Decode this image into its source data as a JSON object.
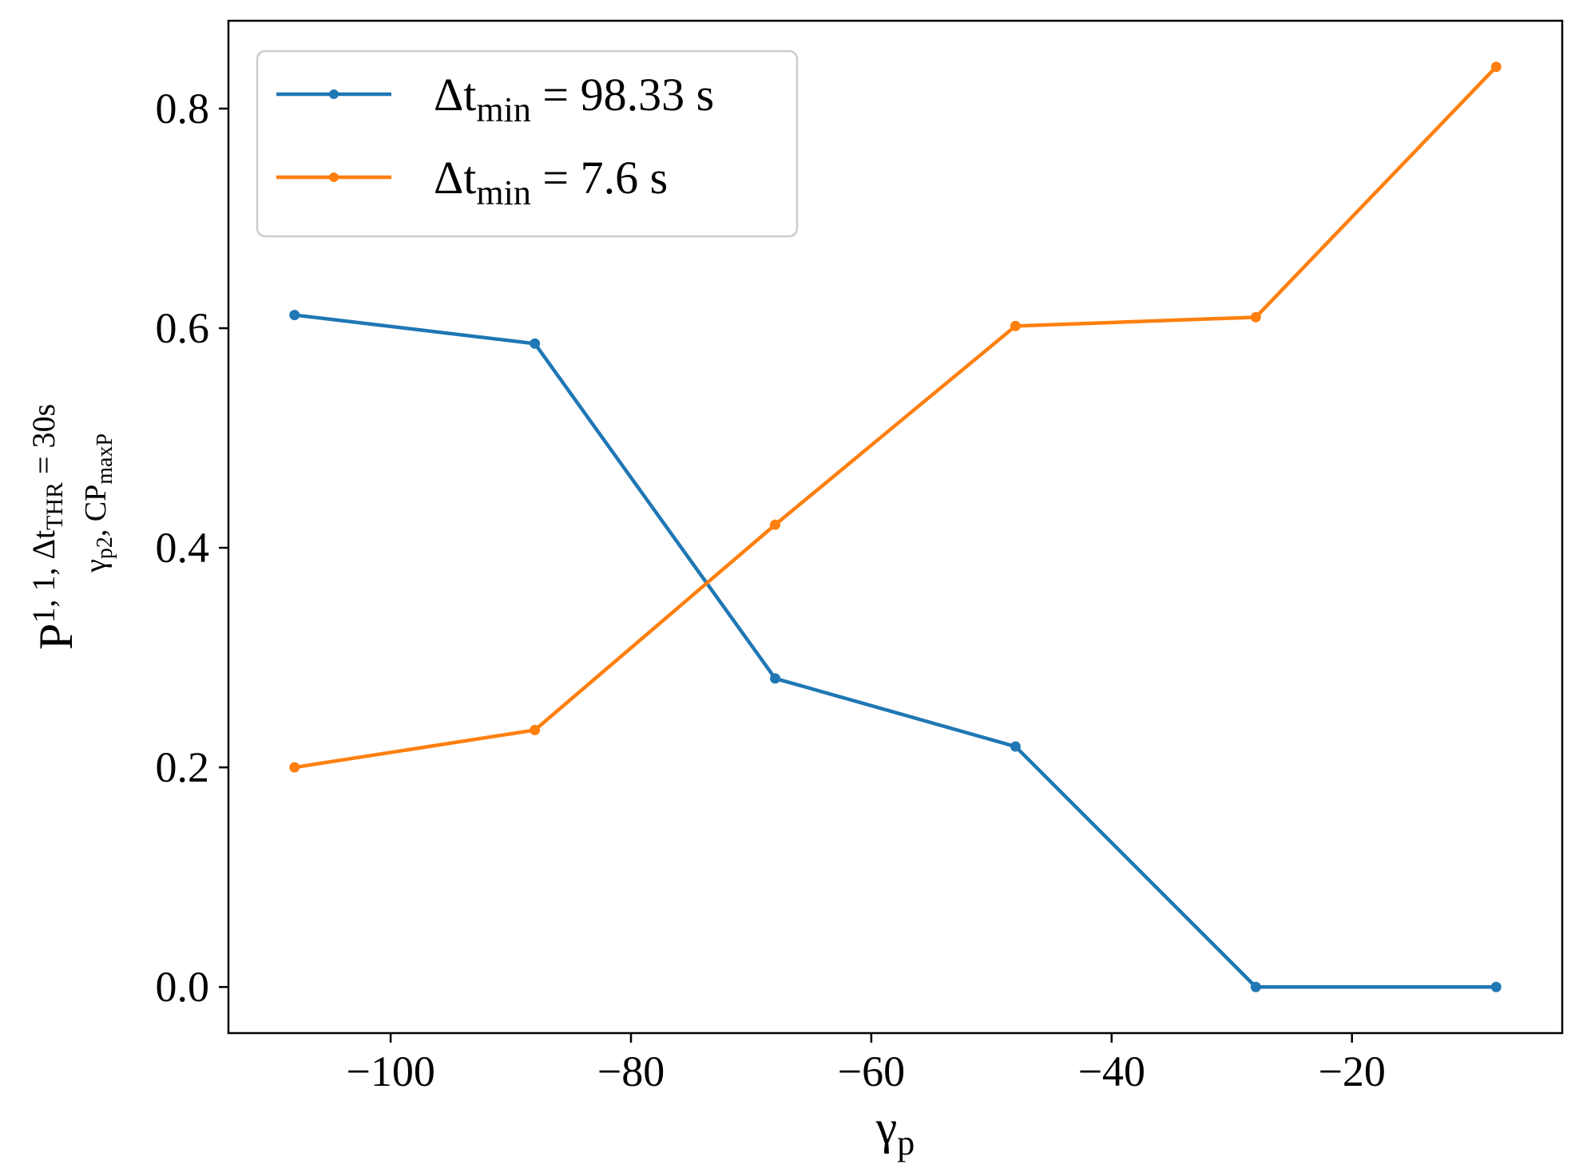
{
  "chart_data": {
    "type": "line",
    "title": "",
    "xlabel": {
      "base": "γ",
      "sub": "p"
    },
    "ylabel": {
      "base": "P",
      "sup": "1, 1, Δt",
      "sup_sub": "THR",
      "sup_tail": " = 30s",
      "sub_parts": [
        {
          "text": "γ",
          "role": "base"
        },
        {
          "text": "p2",
          "role": "sub"
        },
        {
          "text": ", CP",
          "role": "base"
        },
        {
          "text": "maxP",
          "role": "sub"
        }
      ]
    },
    "x": [
      -108,
      -88,
      -68,
      -48,
      -28,
      -8
    ],
    "xlim": [
      -113.5,
      -2.5
    ],
    "ylim": [
      -0.042,
      0.88
    ],
    "xticks": [
      -100,
      -80,
      -60,
      -40,
      -20
    ],
    "xtick_labels": [
      "−100",
      "−80",
      "−60",
      "−40",
      "−20"
    ],
    "yticks": [
      0.0,
      0.2,
      0.4,
      0.6,
      0.8
    ],
    "ytick_labels": [
      "0.0",
      "0.2",
      "0.4",
      "0.6",
      "0.8"
    ],
    "grid": false,
    "legend_position": "top-left",
    "series": [
      {
        "name": "Δt_min = 98.33 s",
        "legend_base": "Δt",
        "legend_sub": "min",
        "legend_tail": " = 98.33 s",
        "color": "#1f77b4",
        "values": [
          0.612,
          0.586,
          0.281,
          0.219,
          0.0,
          0.0
        ]
      },
      {
        "name": "Δt_min = 7.6 s",
        "legend_base": "Δt",
        "legend_sub": "min",
        "legend_tail": " = 7.6 s",
        "color": "#ff7f0e",
        "values": [
          0.2,
          0.234,
          0.421,
          0.602,
          0.61,
          0.838
        ]
      }
    ]
  }
}
